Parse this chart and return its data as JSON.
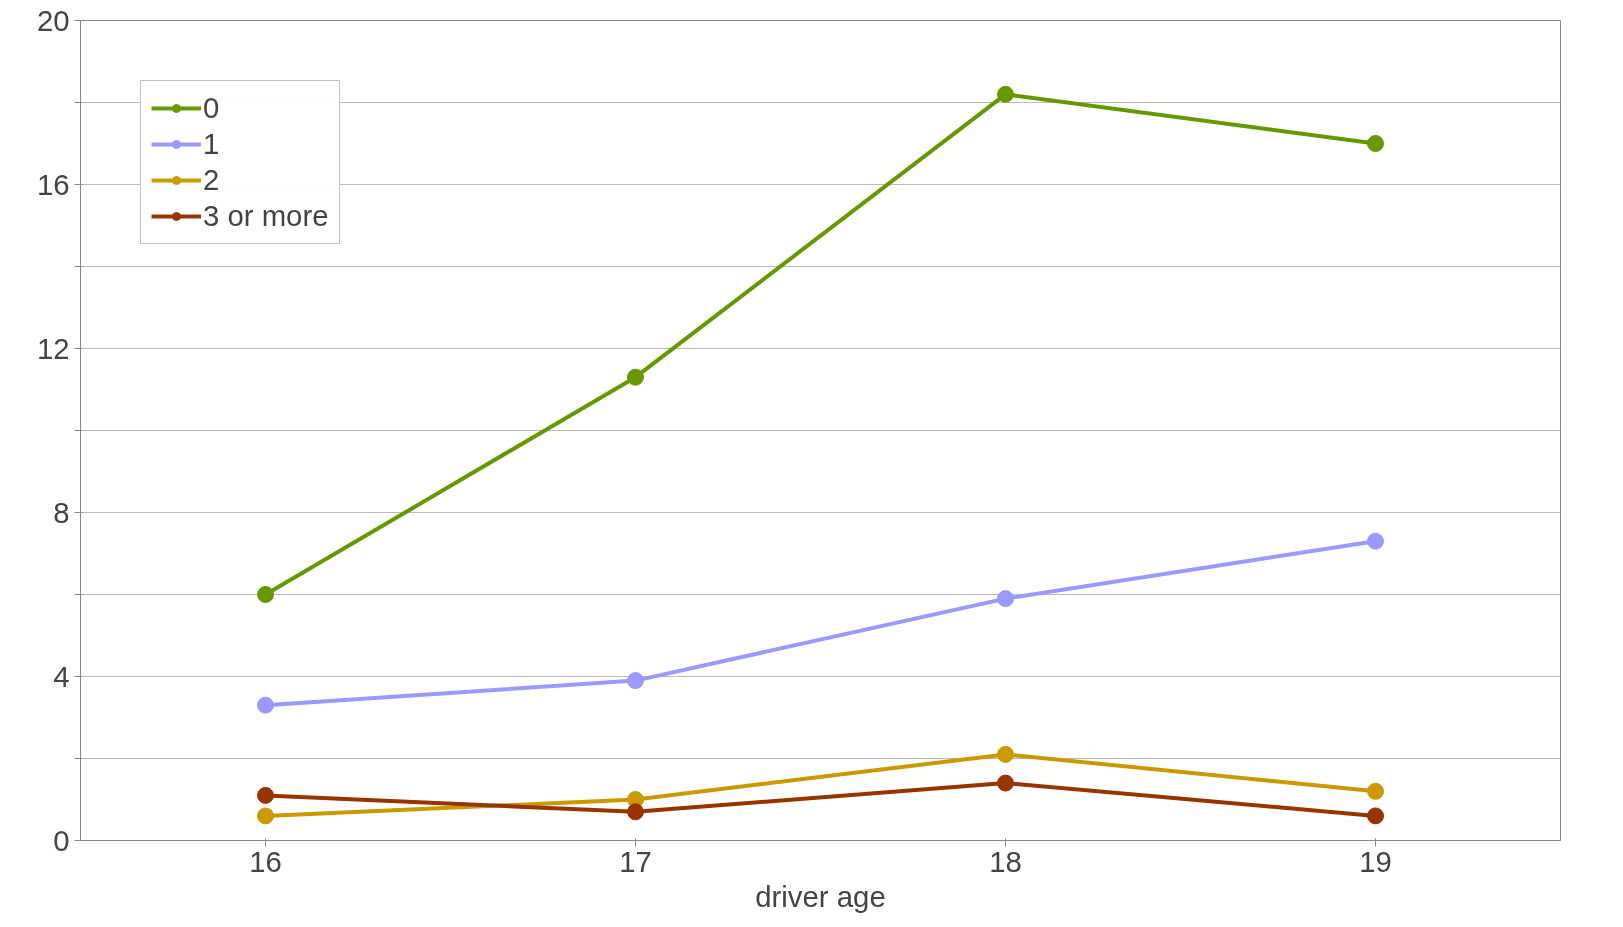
{
  "chart_data": {
    "type": "line",
    "xlabel": "driver age",
    "categories": [
      "16",
      "17",
      "18",
      "19"
    ],
    "series": [
      {
        "name": "0",
        "color": "#669900",
        "values": [
          6.0,
          11.3,
          18.2,
          17.0
        ]
      },
      {
        "name": "1",
        "color": "#9999ff",
        "values": [
          3.3,
          3.9,
          5.9,
          7.3
        ]
      },
      {
        "name": "2",
        "color": "#cc9900",
        "values": [
          0.6,
          1.0,
          2.1,
          1.2
        ]
      },
      {
        "name": "3 or more",
        "color": "#993300",
        "values": [
          1.1,
          0.7,
          1.4,
          0.6
        ]
      }
    ],
    "ylim": [
      0,
      20
    ],
    "yticks": [
      0,
      {
        "value": 2,
        "label": null
      },
      4,
      {
        "value": 6,
        "label": null
      },
      8,
      {
        "value": 10,
        "label": null
      },
      12,
      {
        "value": 14,
        "label": null
      },
      16,
      {
        "value": 18,
        "label": null
      },
      20
    ],
    "grid": "y",
    "legend": "top left",
    "marker": "circle",
    "line_style": "solid"
  }
}
